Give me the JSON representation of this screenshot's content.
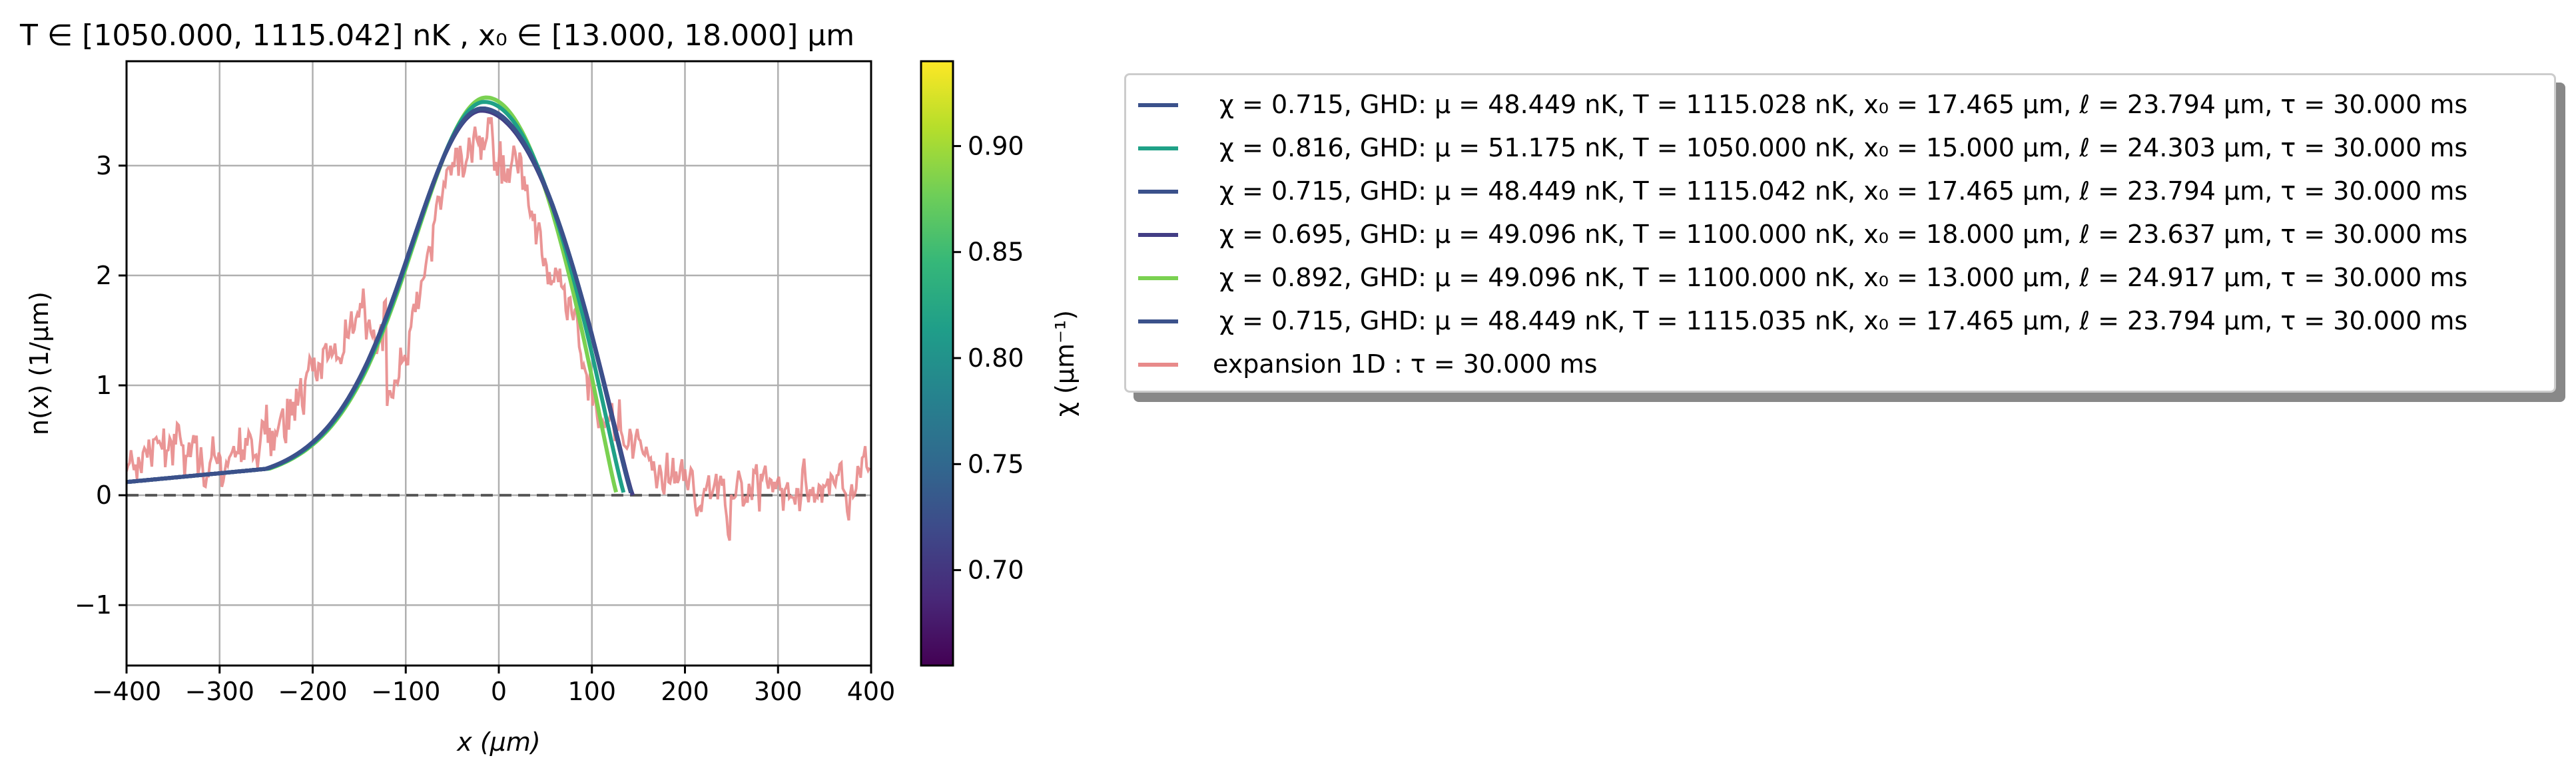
{
  "title": "T ∈ [1050.000, 1115.042] nK ,    x₀ ∈ [13.000, 18.000] μm",
  "chart_data": {
    "type": "line",
    "title": "T ∈ [1050.000, 1115.042] nK ,    x₀ ∈ [13.000, 18.000] μm",
    "xlabel": "x   (μm)",
    "ylabel": "n(x)   (1/μm)",
    "xlim": [
      -400,
      400
    ],
    "ylim": [
      -1.55,
      3.95
    ],
    "xticks": [
      "−400",
      "−300",
      "−200",
      "−100",
      "0",
      "100",
      "200",
      "300",
      "400"
    ],
    "xtick_values": [
      -400,
      -300,
      -200,
      -100,
      0,
      100,
      200,
      300,
      400
    ],
    "yticks": [
      "−1",
      "0",
      "1",
      "2",
      "3"
    ],
    "ytick_values": [
      -1,
      0,
      1,
      2,
      3
    ],
    "grid": true,
    "legend_placement": "outside right",
    "colorbar": {
      "label": "χ (μm⁻¹)",
      "range": [
        0.655,
        0.94
      ],
      "ticks": [
        "0.70",
        "0.75",
        "0.80",
        "0.85",
        "0.90"
      ],
      "tick_values": [
        0.7,
        0.75,
        0.8,
        0.85,
        0.9
      ],
      "colormap": "viridis"
    },
    "series": [
      {
        "name": "χ = 0.715, GHD: μ = 48.449 nK, T = 1115.028 nK, x₀ = 17.465 μm, ℓ = 23.794 μm, τ = 30.000 ms",
        "color": "#3b518b",
        "chi": 0.715,
        "x0": 17.465,
        "ell": 23.794,
        "peak": 3.52,
        "x_end": 143
      },
      {
        "name": "χ = 0.816, GHD: μ = 51.175 nK, T = 1050.000 nK, x₀ = 15.000 μm, ℓ = 24.303 μm, τ = 30.000 ms",
        "color": "#1fa187",
        "chi": 0.816,
        "x0": 15.0,
        "ell": 24.303,
        "peak": 3.58,
        "x_end": 135
      },
      {
        "name": "χ = 0.715, GHD: μ = 48.449 nK, T = 1115.042 nK, x₀ = 17.465 μm, ℓ = 23.794 μm, τ = 30.000 ms",
        "color": "#3b518b",
        "chi": 0.715,
        "x0": 17.465,
        "ell": 23.794,
        "peak": 3.52,
        "x_end": 143
      },
      {
        "name": "χ = 0.695, GHD: μ = 49.096 nK, T = 1100.000 nK, x₀ = 18.000 μm, ℓ = 23.637 μm, τ = 30.000 ms",
        "color": "#433e85",
        "chi": 0.695,
        "x0": 18.0,
        "ell": 23.637,
        "peak": 3.5,
        "x_end": 144
      },
      {
        "name": "χ = 0.892, GHD: μ = 49.096 nK, T = 1100.000 nK, x₀ = 13.000 μm, ℓ = 24.917 μm, τ = 30.000 ms",
        "color": "#7ad151",
        "chi": 0.892,
        "x0": 13.0,
        "ell": 24.917,
        "peak": 3.62,
        "x_end": 127
      },
      {
        "name": "χ = 0.715, GHD: μ = 48.449 nK, T = 1115.035 nK, x₀ = 17.465 μm, ℓ = 23.794 μm, τ = 30.000 ms",
        "color": "#3b518b",
        "chi": 0.715,
        "x0": 17.465,
        "ell": 23.794,
        "peak": 3.52,
        "x_end": 143
      },
      {
        "name": "expansion 1D : τ = 30.000 ms",
        "color": "#e88a8a",
        "type": "noisy"
      }
    ],
    "reference_line": {
      "y": 0,
      "style": "dashed",
      "color": "#555555"
    }
  }
}
